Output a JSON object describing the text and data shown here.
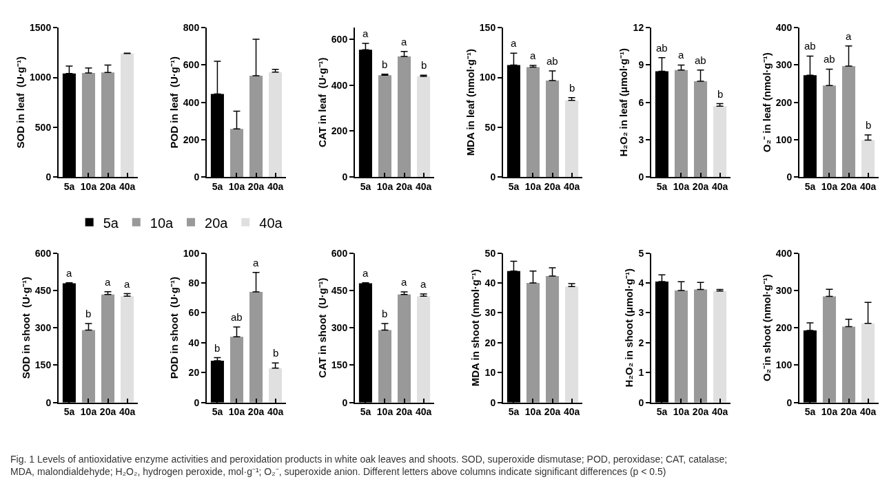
{
  "chart_data": [
    {
      "type": "bar",
      "ylabel": "SOD in leaf  (U·g⁻¹)",
      "categories": [
        "5a",
        "10a",
        "20a",
        "40a"
      ],
      "ylim": [
        0,
        1500
      ],
      "yticks": [
        0,
        500,
        1000,
        1500
      ],
      "legend": "bottom",
      "series": [
        {
          "name": "5a",
          "color": "#000000",
          "values": [
            1040,
            null,
            null,
            null
          ],
          "errors": [
            75,
            null,
            null,
            null
          ]
        },
        {
          "name": "10a",
          "color": "#999999",
          "values": [
            null,
            1045,
            null,
            null
          ],
          "errors": [
            null,
            50,
            null,
            null
          ]
        },
        {
          "name": "20a",
          "color": "#999999",
          "values": [
            null,
            null,
            1050,
            null
          ],
          "errors": [
            null,
            null,
            75,
            null
          ]
        },
        {
          "name": "40a",
          "color": "#e0e0e0",
          "values": [
            null,
            null,
            null,
            1240
          ],
          "errors": [
            null,
            null,
            null,
            5
          ]
        }
      ],
      "annotations": [
        "Fig. 1 Levels of antioxidative enzyme activities and peroxidation products in white oak leaves and shoots. SOD, superoxide dismutase; POD, peroxidase; CAT, catalase; MDA, malondialdehyde; H₂O₂, hydrogen peroxide, mol·g⁻¹; O₂⁻, superoxide anion. Different letters above columns indicate significant differences (p < 0.5)"
      ]
    },
    {
      "type": "bar",
      "ylabel": "POD in leaf  (U·g⁻¹)",
      "categories": [
        "5a",
        "10a",
        "20a",
        "40a"
      ],
      "ylim": [
        0,
        800
      ],
      "yticks": [
        0,
        200,
        400,
        600,
        800
      ],
      "series": [
        {
          "color": "#000000",
          "values": [
            445,
            null,
            null,
            null
          ],
          "errors": [
            175,
            null,
            null,
            null
          ]
        },
        {
          "color": "#999999",
          "values": [
            null,
            258,
            null,
            null
          ],
          "errors": [
            null,
            95,
            null,
            null
          ]
        },
        {
          "color": "#999999",
          "values": [
            null,
            null,
            543,
            null
          ],
          "errors": [
            null,
            null,
            195,
            null
          ]
        },
        {
          "color": "#e0e0e0",
          "values": [
            null,
            null,
            null,
            562
          ],
          "errors": [
            null,
            null,
            null,
            15
          ]
        }
      ]
    },
    {
      "type": "bar",
      "ylabel": "CAT in leaf  (U·g⁻¹)",
      "categories": [
        "5a",
        "10a",
        "20a",
        "40a"
      ],
      "ylim": [
        0,
        650
      ],
      "yticks": [
        0,
        200,
        400,
        600
      ],
      "series": [
        {
          "color": "#000000",
          "values": [
            554,
            null,
            null,
            null
          ],
          "errors": [
            28,
            null,
            null,
            null
          ]
        },
        {
          "color": "#999999",
          "values": [
            null,
            443,
            null,
            null
          ],
          "errors": [
            null,
            5,
            null,
            null
          ]
        },
        {
          "color": "#999999",
          "values": [
            null,
            null,
            525,
            null
          ],
          "errors": [
            null,
            null,
            22,
            null
          ]
        },
        {
          "color": "#e0e0e0",
          "values": [
            null,
            null,
            null,
            438
          ],
          "errors": [
            null,
            null,
            null,
            5
          ]
        }
      ],
      "annotations": [
        {
          "text": "a",
          "x": "5a",
          "y": 582
        },
        {
          "text": "b",
          "x": "10a",
          "y": 448
        },
        {
          "text": "a",
          "x": "20a",
          "y": 547
        },
        {
          "text": "b",
          "x": "40a",
          "y": 443
        }
      ]
    },
    {
      "type": "bar",
      "ylabel": "MDA in leaf (nmol·g⁻¹)",
      "categories": [
        "5a",
        "10a",
        "20a",
        "40a"
      ],
      "ylim": [
        0,
        150
      ],
      "yticks": [
        0,
        50,
        100,
        150
      ],
      "series": [
        {
          "color": "#000000",
          "values": [
            112.5,
            null,
            null,
            null
          ],
          "errors": [
            12,
            null,
            null,
            null
          ]
        },
        {
          "color": "#999999",
          "values": [
            null,
            110.5,
            null,
            null
          ],
          "errors": [
            null,
            1.7,
            null,
            null
          ]
        },
        {
          "color": "#999999",
          "values": [
            null,
            null,
            97,
            null
          ],
          "errors": [
            null,
            null,
            9.6,
            null
          ]
        },
        {
          "color": "#e0e0e0",
          "values": [
            null,
            null,
            null,
            77
          ],
          "errors": [
            null,
            null,
            null,
            2.8
          ]
        }
      ],
      "annotations": [
        {
          "text": "a",
          "x": "5a",
          "y": 124.5
        },
        {
          "text": "a",
          "x": "10a",
          "y": 112.2
        },
        {
          "text": "ab",
          "x": "20a",
          "y": 106.6
        },
        {
          "text": "b",
          "x": "40a",
          "y": 79.8
        }
      ]
    },
    {
      "type": "bar",
      "ylabel": "H₂O₂ in leaf (μmol·g⁻¹)",
      "categories": [
        "5a",
        "10a",
        "20a",
        "40a"
      ],
      "ylim": [
        0,
        12
      ],
      "yticks": [
        0,
        3,
        6,
        9,
        12
      ],
      "series": [
        {
          "color": "#000000",
          "values": [
            8.5,
            null,
            null,
            null
          ],
          "errors": [
            1.1,
            null,
            null,
            null
          ]
        },
        {
          "color": "#999999",
          "values": [
            null,
            8.6,
            null,
            null
          ],
          "errors": [
            null,
            0.4,
            null,
            null
          ]
        },
        {
          "color": "#999999",
          "values": [
            null,
            null,
            7.7,
            null
          ],
          "errors": [
            null,
            null,
            0.9,
            null
          ]
        },
        {
          "color": "#e0e0e0",
          "values": [
            null,
            null,
            null,
            5.7
          ],
          "errors": [
            null,
            null,
            null,
            0.2
          ]
        }
      ],
      "annotations": [
        {
          "text": "ab",
          "x": "5a",
          "y": 9.6
        },
        {
          "text": "a",
          "x": "10a",
          "y": 9.0
        },
        {
          "text": "ab",
          "x": "20a",
          "y": 8.6
        },
        {
          "text": "b",
          "x": "40a",
          "y": 5.9
        }
      ]
    },
    {
      "type": "bar",
      "ylabel": "O₂⁻ in leaf (nmol·g⁻¹)",
      "categories": [
        "5a",
        "10a",
        "20a",
        "40a"
      ],
      "ylim": [
        0,
        400
      ],
      "yticks": [
        0,
        100,
        200,
        300,
        400
      ],
      "series": [
        {
          "color": "#000000",
          "values": [
            273,
            null,
            null,
            null
          ],
          "errors": [
            51,
            null,
            null,
            null
          ]
        },
        {
          "color": "#999999",
          "values": [
            null,
            245,
            null,
            null
          ],
          "errors": [
            null,
            44,
            null,
            null
          ]
        },
        {
          "color": "#999999",
          "values": [
            null,
            null,
            297,
            null
          ],
          "errors": [
            null,
            null,
            54,
            null
          ]
        },
        {
          "color": "#e0e0e0",
          "values": [
            null,
            null,
            null,
            99
          ],
          "errors": [
            null,
            null,
            null,
            14
          ]
        }
      ],
      "annotations": [
        {
          "text": "ab",
          "x": "5a",
          "y": 324
        },
        {
          "text": "ab",
          "x": "10a",
          "y": 289
        },
        {
          "text": "a",
          "x": "20a",
          "y": 351
        },
        {
          "text": "b",
          "x": "40a",
          "y": 113
        }
      ]
    },
    {
      "type": "bar",
      "ylabel": "SOD in shoot  (U·g⁻¹)",
      "categories": [
        "5a",
        "10a",
        "20a",
        "40a"
      ],
      "ylim": [
        0,
        600
      ],
      "yticks": [
        0,
        150,
        300,
        450,
        600
      ],
      "series": [
        {
          "color": "#000000",
          "values": [
            479,
            null,
            null,
            null
          ],
          "errors": [
            2,
            null,
            null,
            null
          ]
        },
        {
          "color": "#999999",
          "values": [
            null,
            291,
            null,
            null
          ],
          "errors": [
            null,
            26,
            null,
            null
          ]
        },
        {
          "color": "#999999",
          "values": [
            null,
            null,
            434,
            null
          ],
          "errors": [
            null,
            null,
            11,
            null
          ]
        },
        {
          "color": "#e0e0e0",
          "values": [
            null,
            null,
            null,
            427
          ],
          "errors": [
            null,
            null,
            null,
            10
          ]
        }
      ],
      "annotations": [
        {
          "text": "a",
          "x": "5a",
          "y": 481
        },
        {
          "text": "b",
          "x": "10a",
          "y": 317
        },
        {
          "text": "a",
          "x": "20a",
          "y": 445
        },
        {
          "text": "a",
          "x": "40a",
          "y": 437
        }
      ]
    },
    {
      "type": "bar",
      "ylabel": "POD in shoot  (U·g⁻¹)",
      "categories": [
        "5a",
        "10a",
        "20a",
        "40a"
      ],
      "ylim": [
        0,
        100
      ],
      "yticks": [
        0,
        20,
        40,
        60,
        80,
        100
      ],
      "series": [
        {
          "color": "#000000",
          "values": [
            28,
            null,
            null,
            null
          ],
          "errors": [
            2,
            null,
            null,
            null
          ]
        },
        {
          "color": "#999999",
          "values": [
            null,
            44,
            null,
            null
          ],
          "errors": [
            null,
            6.5,
            null,
            null
          ]
        },
        {
          "color": "#999999",
          "values": [
            null,
            null,
            74,
            null
          ],
          "errors": [
            null,
            null,
            13,
            null
          ]
        },
        {
          "color": "#e0e0e0",
          "values": [
            null,
            null,
            null,
            23
          ],
          "errors": [
            null,
            null,
            null,
            3.5
          ]
        }
      ],
      "annotations": [
        {
          "text": "b",
          "x": "5a",
          "y": 30
        },
        {
          "text": "ab",
          "x": "10a",
          "y": 50.5
        },
        {
          "text": "a",
          "x": "20a",
          "y": 87
        },
        {
          "text": "b",
          "x": "40a",
          "y": 26.5
        }
      ]
    },
    {
      "type": "bar",
      "ylabel": "CAT in shoot  (U·g⁻¹)",
      "categories": [
        "5a",
        "10a",
        "20a",
        "40a"
      ],
      "ylim": [
        0,
        600
      ],
      "yticks": [
        0,
        150,
        300,
        450,
        600
      ],
      "series": [
        {
          "color": "#000000",
          "values": [
            479,
            null,
            null,
            null
          ],
          "errors": [
            2,
            null,
            null,
            null
          ]
        },
        {
          "color": "#999999",
          "values": [
            null,
            291,
            null,
            null
          ],
          "errors": [
            null,
            26,
            null,
            null
          ]
        },
        {
          "color": "#999999",
          "values": [
            null,
            null,
            434,
            null
          ],
          "errors": [
            null,
            null,
            10,
            null
          ]
        },
        {
          "color": "#e0e0e0",
          "values": [
            null,
            null,
            null,
            427
          ],
          "errors": [
            null,
            null,
            null,
            9
          ]
        }
      ],
      "annotations": [
        {
          "text": "a",
          "x": "5a",
          "y": 481
        },
        {
          "text": "b",
          "x": "10a",
          "y": 317
        },
        {
          "text": "a",
          "x": "20a",
          "y": 444
        },
        {
          "text": "a",
          "x": "40a",
          "y": 436
        }
      ]
    },
    {
      "type": "bar",
      "ylabel": "MDA in shoot (nmol·g⁻¹)",
      "categories": [
        "5a",
        "10a",
        "20a",
        "40a"
      ],
      "ylim": [
        0,
        50
      ],
      "yticks": [
        0,
        10,
        20,
        30,
        40,
        50
      ],
      "series": [
        {
          "color": "#000000",
          "values": [
            44,
            null,
            null,
            null
          ],
          "errors": [
            3.3,
            null,
            null,
            null
          ]
        },
        {
          "color": "#999999",
          "values": [
            null,
            40,
            null,
            null
          ],
          "errors": [
            null,
            4,
            null,
            null
          ]
        },
        {
          "color": "#999999",
          "values": [
            null,
            null,
            42.3,
            null
          ],
          "errors": [
            null,
            null,
            2.8,
            null
          ]
        },
        {
          "color": "#e0e0e0",
          "values": [
            null,
            null,
            null,
            38.8
          ],
          "errors": [
            null,
            null,
            null,
            1
          ]
        }
      ]
    },
    {
      "type": "bar",
      "ylabel": "H₂O₂ in shoot (μmol·g⁻¹)",
      "categories": [
        "5a",
        "10a",
        "20a",
        "40a"
      ],
      "ylim": [
        0,
        5
      ],
      "yticks": [
        0,
        1,
        2,
        3,
        4,
        5
      ],
      "series": [
        {
          "color": "#000000",
          "values": [
            4.05,
            null,
            null,
            null
          ],
          "errors": [
            0.22,
            null,
            null,
            null
          ]
        },
        {
          "color": "#999999",
          "values": [
            null,
            3.75,
            null,
            null
          ],
          "errors": [
            null,
            0.29,
            null,
            null
          ]
        },
        {
          "color": "#999999",
          "values": [
            null,
            null,
            3.78,
            null
          ],
          "errors": [
            null,
            null,
            0.24,
            null
          ]
        },
        {
          "color": "#e0e0e0",
          "values": [
            null,
            null,
            null,
            3.73
          ],
          "errors": [
            null,
            null,
            null,
            0.05
          ]
        }
      ]
    },
    {
      "type": "bar",
      "ylabel": "O₂⁻in shoot (nmol·g⁻¹)",
      "categories": [
        "5a",
        "10a",
        "20a",
        "40a"
      ],
      "ylim": [
        0,
        400
      ],
      "yticks": [
        0,
        100,
        200,
        300,
        400
      ],
      "series": [
        {
          "color": "#000000",
          "values": [
            193,
            null,
            null,
            null
          ],
          "errors": [
            20,
            null,
            null,
            null
          ]
        },
        {
          "color": "#999999",
          "values": [
            null,
            284,
            null,
            null
          ],
          "errors": [
            null,
            19,
            null,
            null
          ]
        },
        {
          "color": "#999999",
          "values": [
            null,
            null,
            203,
            null
          ],
          "errors": [
            null,
            null,
            20,
            null
          ]
        },
        {
          "color": "#e0e0e0",
          "values": [
            null,
            null,
            null,
            212
          ],
          "errors": [
            null,
            null,
            null,
            56
          ]
        }
      ]
    }
  ]
}
